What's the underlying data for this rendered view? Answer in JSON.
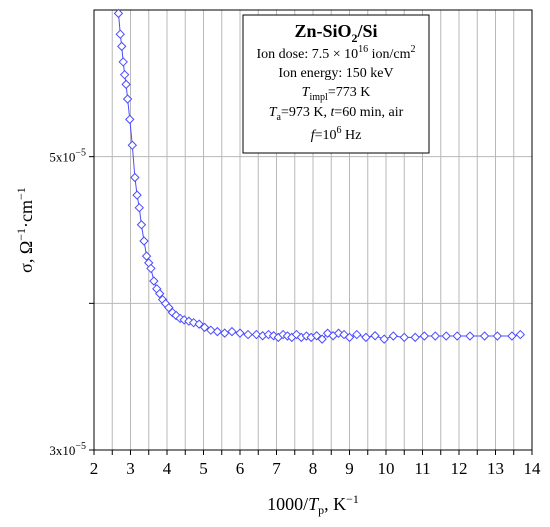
{
  "chart_data": {
    "type": "scatter",
    "x_ticks": [
      "2",
      "2.5",
      "3",
      "3.5",
      "4",
      "4.5",
      "5",
      "5.5",
      "6",
      "6.5",
      "7",
      "7.5",
      "8",
      "8.5",
      "9",
      "9.5",
      "10",
      "10.5",
      "11",
      "11.5",
      "12",
      "12.5",
      "13",
      "13.5",
      "14"
    ],
    "x_tick_labels": [
      "2",
      "3",
      "4",
      "5",
      "6",
      "7",
      "8",
      "9",
      "10",
      "11",
      "12",
      "13",
      "14"
    ],
    "xlim": [
      2,
      14
    ],
    "ylim": [
      3e-05,
      6e-05
    ],
    "y_ticks": [
      3e-05,
      4e-05,
      5e-05
    ],
    "y_tick_labels": [
      {
        "value": 5e-05,
        "mant": "5x10",
        "exp": "−5"
      },
      {
        "value": 3e-05,
        "mant": "3x10",
        "exp": "−5"
      }
    ],
    "xlabel": {
      "pre": "1000/",
      "var": "T",
      "sub": "p",
      "post": ", K",
      "sup": "−1"
    },
    "ylabel": {
      "pre": "σ, Ω",
      "sup1": "−1",
      "mid": "·cm",
      "sup2": "−1"
    },
    "legend_box": [
      {
        "runs": [
          {
            "t": "Zn-SiO",
            "style": "bold"
          },
          {
            "t": "2",
            "style": "boldsub"
          },
          {
            "t": "/Si",
            "style": "bold"
          }
        ]
      },
      {
        "runs": [
          {
            "t": "Ion dose: 7.5 × 10"
          },
          {
            "t": "16",
            "style": "sup"
          },
          {
            "t": " ion/cm"
          },
          {
            "t": "2",
            "style": "sup"
          }
        ]
      },
      {
        "runs": [
          {
            "t": "Ion energy: 150 keV"
          }
        ]
      },
      {
        "runs": [
          {
            "t": "T",
            "style": "italic"
          },
          {
            "t": "impl",
            "style": "sub"
          },
          {
            "t": "=773 K"
          }
        ]
      },
      {
        "runs": [
          {
            "t": "T",
            "style": "italic"
          },
          {
            "t": "a",
            "style": "sub"
          },
          {
            "t": "=973 K, "
          },
          {
            "t": "t",
            "style": "italic"
          },
          {
            "t": "=60 min, air"
          }
        ]
      },
      {
        "runs": [
          {
            "t": "f",
            "style": "italic"
          },
          {
            "t": "=10"
          },
          {
            "t": "6",
            "style": "sup"
          },
          {
            "t": " Hz"
          }
        ]
      }
    ],
    "series_color": "#4c4cff",
    "series": [
      {
        "x": [
          2.67,
          2.72,
          2.76,
          2.8,
          2.84,
          2.88,
          2.92,
          2.98,
          3.05,
          3.12,
          3.18,
          3.24,
          3.3,
          3.37,
          3.44,
          3.5,
          3.56,
          3.64,
          3.72,
          3.8,
          3.88,
          3.96,
          4.05,
          4.15,
          4.25,
          4.36,
          4.47,
          4.6,
          4.73,
          4.88,
          5.03,
          5.2,
          5.38,
          5.58,
          5.78,
          6.0,
          6.22,
          6.45,
          6.62,
          6.78,
          6.92,
          7.05,
          7.18,
          7.3,
          7.42,
          7.55,
          7.68,
          7.82,
          7.95,
          8.1,
          8.25,
          8.4,
          8.55,
          8.7,
          8.85,
          9.0,
          9.2,
          9.45,
          9.7,
          9.95,
          10.2,
          10.5,
          10.8,
          11.05,
          11.35,
          11.65,
          11.95,
          12.3,
          12.7,
          13.05,
          13.45,
          13.68
        ],
        "y": [
          5.977e-05,
          5.835e-05,
          5.752e-05,
          5.646e-05,
          5.559e-05,
          5.493e-05,
          5.393e-05,
          5.254e-05,
          5.078e-05,
          4.858e-05,
          4.738e-05,
          4.652e-05,
          4.536e-05,
          4.425e-05,
          4.322e-05,
          4.276e-05,
          4.238e-05,
          4.152e-05,
          4.099e-05,
          4.066e-05,
          4.025e-05,
          3.998e-05,
          3.971e-05,
          3.937e-05,
          3.917e-05,
          3.897e-05,
          3.887e-05,
          3.878e-05,
          3.868e-05,
          3.858e-05,
          3.836e-05,
          3.817e-05,
          3.807e-05,
          3.797e-05,
          3.807e-05,
          3.797e-05,
          3.787e-05,
          3.787e-05,
          3.779e-05,
          3.787e-05,
          3.779e-05,
          3.768e-05,
          3.787e-05,
          3.777e-05,
          3.768e-05,
          3.787e-05,
          3.768e-05,
          3.777e-05,
          3.768e-05,
          3.779e-05,
          3.756e-05,
          3.796e-05,
          3.779e-05,
          3.796e-05,
          3.787e-05,
          3.768e-05,
          3.787e-05,
          3.768e-05,
          3.779e-05,
          3.756e-05,
          3.777e-05,
          3.768e-05,
          3.768e-05,
          3.777e-05,
          3.777e-05,
          3.777e-05,
          3.777e-05,
          3.777e-05,
          3.777e-05,
          3.777e-05,
          3.777e-05,
          3.787e-05
        ]
      }
    ],
    "grid": true,
    "legend_position": "top-right"
  }
}
